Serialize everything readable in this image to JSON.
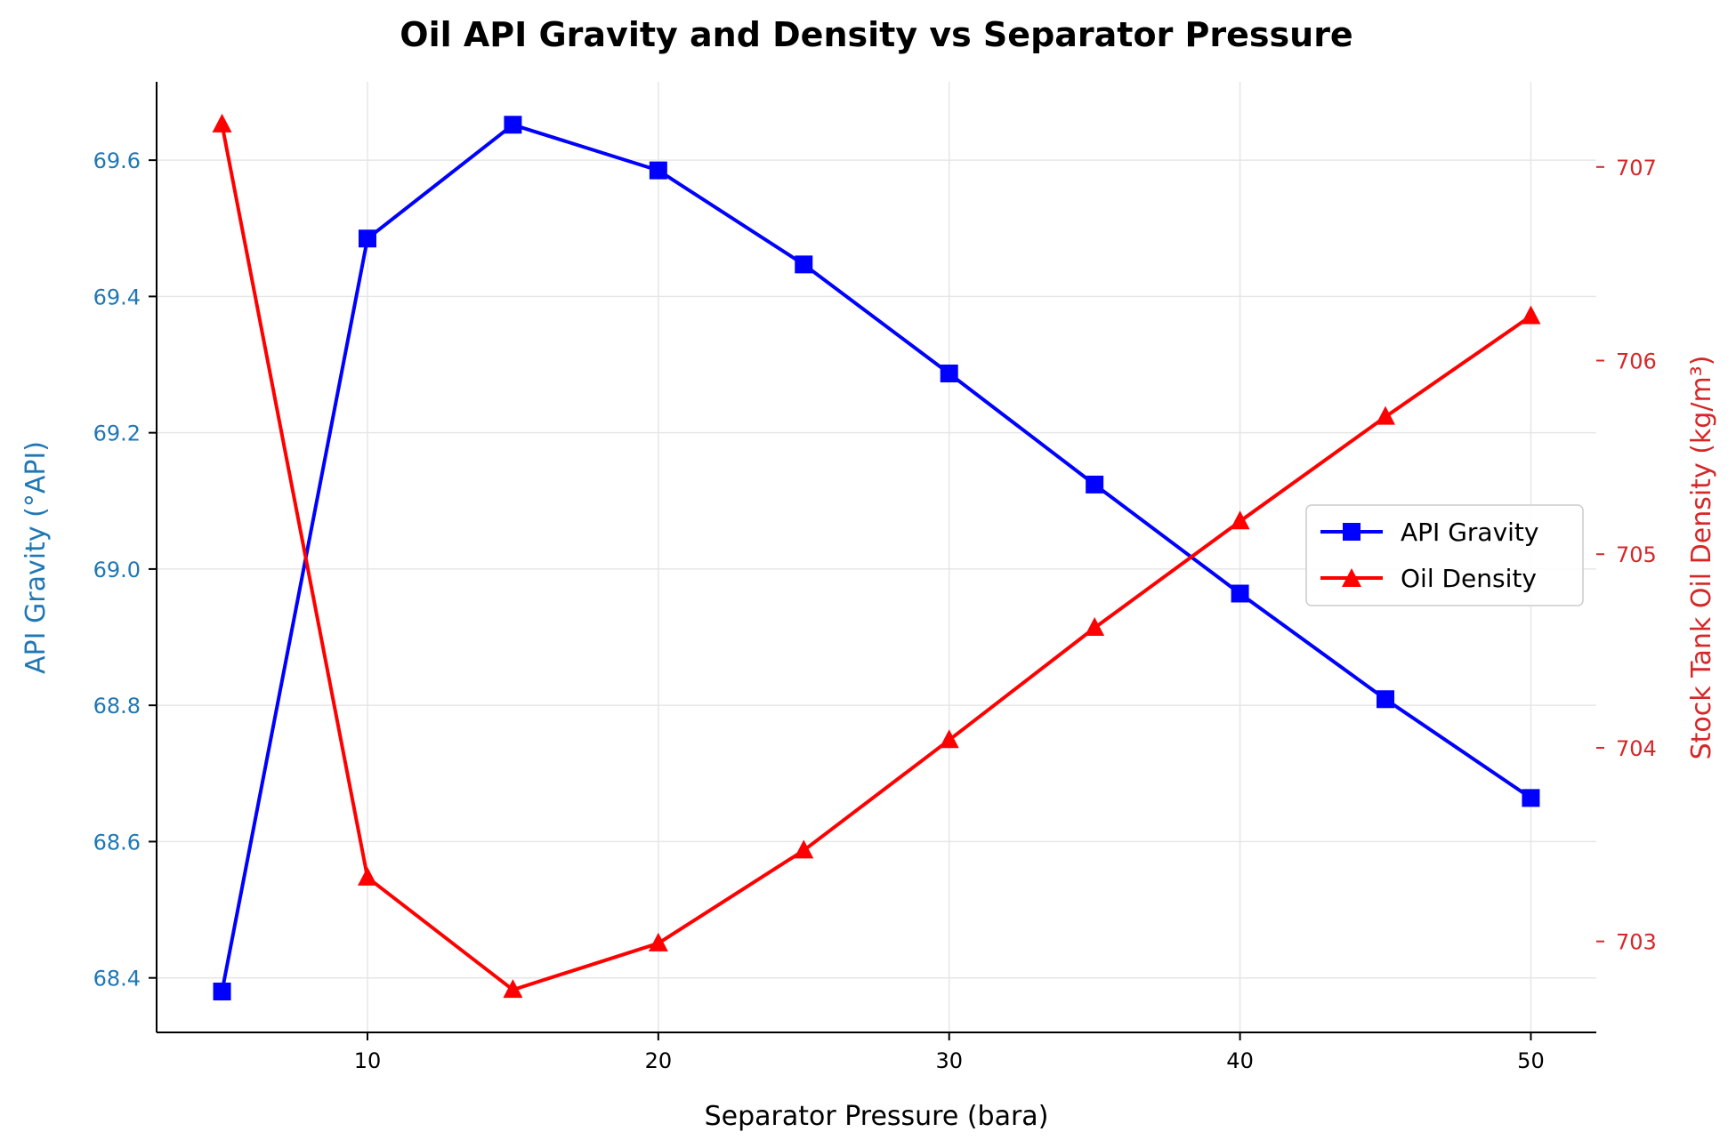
{
  "chart_data": {
    "type": "line",
    "title": "Oil API Gravity and Density vs Separator Pressure",
    "xlabel": "Separator Pressure (bara)",
    "ylabel_left": "API Gravity (°API)",
    "ylabel_right": "Stock Tank Oil Density (kg/m³)",
    "x": [
      5,
      10,
      15,
      20,
      25,
      30,
      35,
      40,
      45,
      50
    ],
    "xlim": [
      2.75,
      52.25
    ],
    "xticks": [
      10,
      20,
      30,
      40,
      50
    ],
    "ylim_left": [
      68.32,
      69.715
    ],
    "yticks_left": [
      68.4,
      68.6,
      68.8,
      69.0,
      69.2,
      69.4,
      69.6
    ],
    "ylim_right": [
      702.53,
      707.44
    ],
    "yticks_right": [
      703,
      704,
      705,
      706,
      707
    ],
    "grid": true,
    "legend_position": "center-right",
    "series": [
      {
        "name": "API Gravity",
        "axis": "left",
        "color": "#0000ff",
        "marker": "square",
        "values": [
          68.38,
          69.485,
          69.652,
          69.585,
          69.447,
          69.287,
          69.124,
          68.964,
          68.809,
          68.664
        ]
      },
      {
        "name": "Oil Density",
        "axis": "right",
        "color": "#ff0000",
        "marker": "triangle",
        "values": [
          707.22,
          703.33,
          702.75,
          702.99,
          703.47,
          704.04,
          704.62,
          705.17,
          705.71,
          706.23
        ]
      }
    ],
    "colors": {
      "left_axis": "#1f77b4",
      "right_axis": "#d62728",
      "grid": "#e6e6e6"
    }
  }
}
